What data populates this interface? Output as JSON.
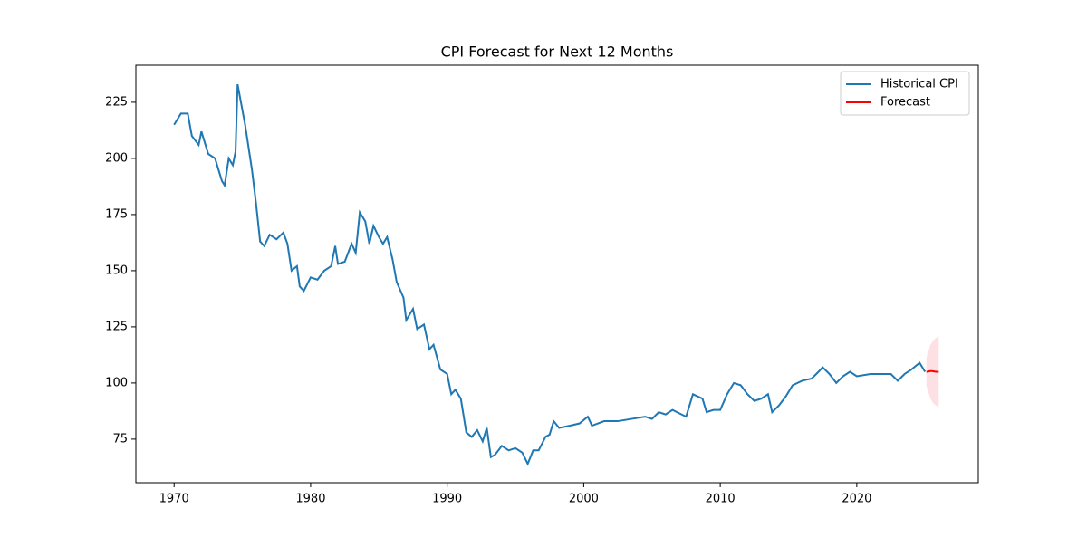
{
  "chart_data": {
    "type": "line",
    "title": "CPI Forecast for Next 12 Months",
    "xlim": [
      1967.2,
      2028.9
    ],
    "xticks": [
      1970,
      1980,
      1990,
      2000,
      2010,
      2020
    ],
    "ylim": [
      55.6,
      241.5
    ],
    "yticks": [
      75,
      100,
      125,
      150,
      175,
      200,
      225
    ],
    "legend": "upper right",
    "series": [
      {
        "name": "Historical CPI",
        "color": "#1f77b4",
        "x": [
          1970.0,
          1970.5,
          1971.0,
          1971.3,
          1971.8,
          1972.0,
          1972.5,
          1973.0,
          1973.5,
          1973.7,
          1974.0,
          1974.3,
          1974.5,
          1974.65,
          1975.2,
          1975.7,
          1976.0,
          1976.3,
          1976.6,
          1977.0,
          1977.5,
          1978.0,
          1978.3,
          1978.6,
          1979.0,
          1979.2,
          1979.5,
          1980.0,
          1980.5,
          1981.0,
          1981.5,
          1981.8,
          1982.0,
          1982.5,
          1983.0,
          1983.3,
          1983.6,
          1984.0,
          1984.3,
          1984.6,
          1985.0,
          1985.3,
          1985.6,
          1986.0,
          1986.3,
          1986.8,
          1987.0,
          1987.5,
          1987.8,
          1988.3,
          1988.7,
          1989.0,
          1989.5,
          1990.0,
          1990.3,
          1990.6,
          1991.0,
          1991.4,
          1991.8,
          1992.2,
          1992.6,
          1992.9,
          1993.2,
          1993.5,
          1994.0,
          1994.5,
          1995.0,
          1995.5,
          1995.9,
          1996.3,
          1996.7,
          1997.2,
          1997.5,
          1997.8,
          1998.2,
          1999.0,
          1999.7,
          2000.3,
          2000.6,
          2001.5,
          2002.5,
          2003.5,
          2004.5,
          2005.0,
          2005.5,
          2006.0,
          2006.5,
          2007.5,
          2008.0,
          2008.7,
          2009.0,
          2009.5,
          2010.0,
          2010.5,
          2011.0,
          2011.5,
          2012.0,
          2012.5,
          2013.0,
          2013.5,
          2013.8,
          2014.3,
          2014.8,
          2015.3,
          2016.0,
          2016.7,
          2017.2,
          2017.5,
          2018.0,
          2018.5,
          2019.0,
          2019.5,
          2020.0,
          2021.0,
          2022.0,
          2022.5,
          2023.0,
          2023.5,
          2024.0,
          2024.6,
          2025.0
        ],
        "values": [
          215,
          220,
          220,
          210,
          206,
          212,
          202,
          200,
          190,
          188,
          200,
          197,
          203,
          233,
          215,
          195,
          180,
          163,
          161,
          166,
          164,
          167,
          162,
          150,
          152,
          143,
          141,
          147,
          146,
          150,
          152,
          161,
          153,
          154,
          162,
          158,
          176,
          172,
          162,
          170,
          165,
          162,
          165,
          155,
          145,
          138,
          128,
          133,
          124,
          126,
          115,
          117,
          106,
          104,
          95,
          97,
          93,
          78,
          76,
          79,
          74,
          80,
          67,
          68,
          72,
          70,
          71,
          69,
          64,
          70,
          70,
          76,
          77,
          83,
          80,
          81,
          82,
          85,
          81,
          83,
          83,
          84,
          85,
          84,
          87,
          86,
          88,
          85,
          95,
          93,
          87,
          88,
          88,
          95,
          100,
          99,
          95,
          92,
          93,
          95,
          87,
          90,
          94,
          99,
          101,
          102,
          105,
          107,
          104,
          100,
          103,
          105,
          103,
          104,
          104,
          104,
          101,
          104,
          106,
          109,
          105
        ]
      },
      {
        "name": "Forecast",
        "color": "#ff0000",
        "band_color": "#fde0e4",
        "x": [
          2025.1,
          2025.2,
          2025.3,
          2025.4,
          2025.5,
          2025.6,
          2025.7,
          2025.8,
          2025.9,
          2026.0
        ],
        "values": [
          105,
          105,
          105.2,
          105.3,
          105.3,
          105.2,
          105.1,
          105,
          105,
          104.9
        ],
        "lower": [
          99,
          96,
          95,
          93,
          92,
          91,
          90.5,
          90,
          89.5,
          89
        ],
        "upper": [
          111,
          114,
          115,
          117,
          118,
          119,
          119.5,
          120,
          120.5,
          121
        ]
      }
    ]
  }
}
